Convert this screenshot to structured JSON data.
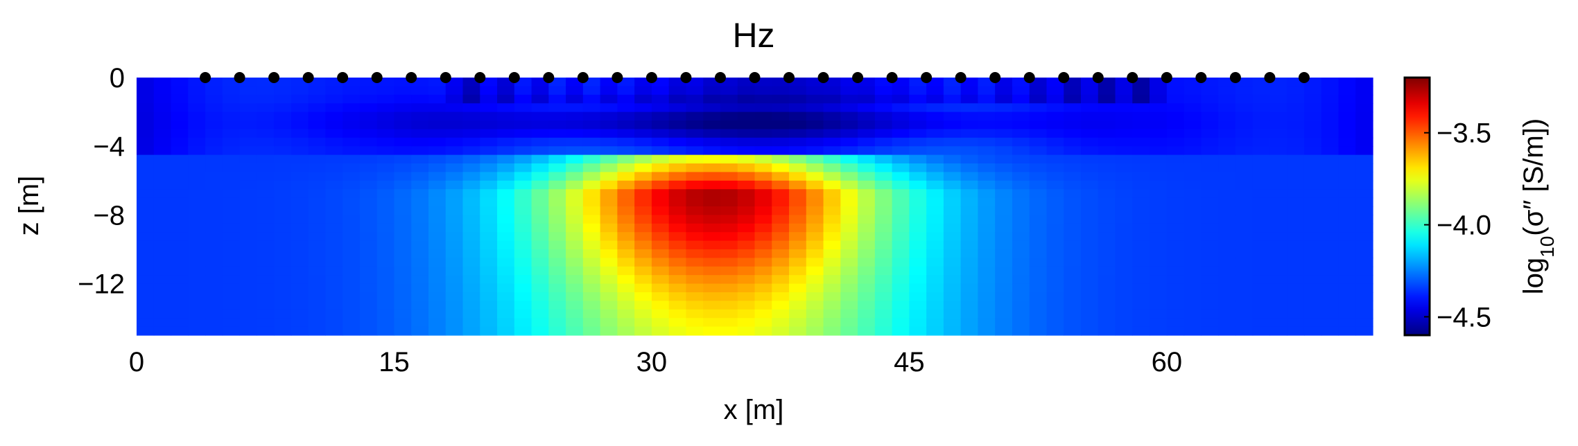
{
  "chart_data": {
    "type": "heatmap",
    "title": "Hz",
    "xlabel": "x [m]",
    "ylabel": "z [m]",
    "xlim": [
      0,
      72
    ],
    "ylim": [
      -15,
      0
    ],
    "xticks": [
      0,
      15,
      30,
      45,
      60
    ],
    "xtick_labels": [
      "0",
      "15",
      "30",
      "45",
      "60"
    ],
    "yticks": [
      0,
      -4,
      -8,
      -12
    ],
    "ytick_labels": [
      "0",
      "−4",
      "−8",
      "−12"
    ],
    "colorbar": {
      "label_prefix": "log",
      "label_sub": "10",
      "label_suffix": "(σ″ [S/m])",
      "cmap": "jet",
      "vmin": -4.6,
      "vmax": -3.2,
      "ticks": [
        -3.5,
        -4.0,
        -4.5
      ],
      "tick_labels": [
        "−3.5",
        "−4.0",
        "−4.5"
      ]
    },
    "anomaly": {
      "description_values": "conductive body, max about -3.25 near x=34, z=-6",
      "peak_value": -3.25,
      "background_value": -4.35
    },
    "electrodes": {
      "z": 0,
      "x": [
        4,
        6,
        8,
        10,
        12,
        14,
        16,
        18,
        20,
        22,
        24,
        26,
        28,
        30,
        32,
        34,
        36,
        38,
        40,
        42,
        44,
        46,
        48,
        50,
        52,
        54,
        56,
        58,
        60,
        62,
        64,
        66,
        68
      ]
    }
  }
}
